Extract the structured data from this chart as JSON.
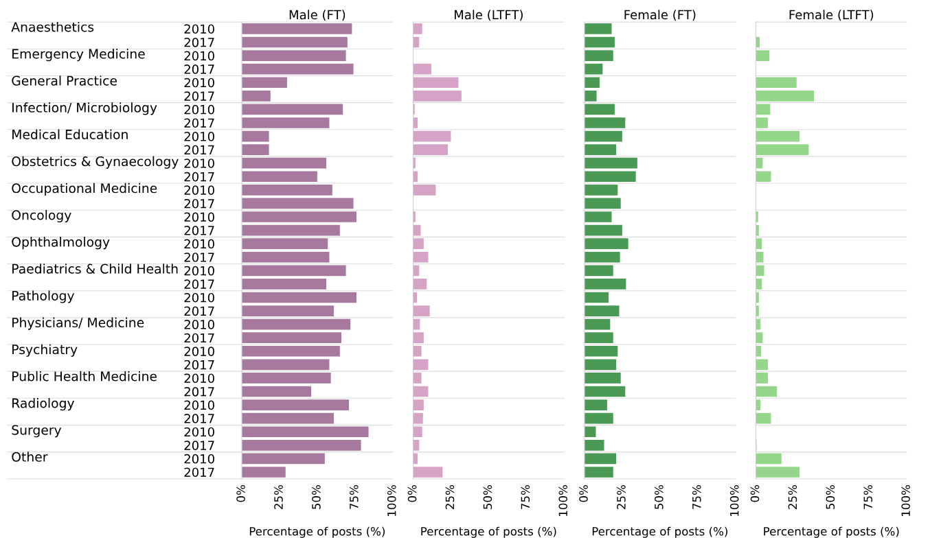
{
  "chart_data": [
    {
      "type": "bar",
      "orientation": "horizontal",
      "title": "Male (FT)",
      "xlabel": "Percentage of posts (%)",
      "categories": [
        "2010",
        "2017",
        "2010",
        "2017",
        "2010",
        "2017",
        "2010",
        "2017",
        "2010",
        "2017",
        "2010",
        "2017",
        "2010",
        "2017",
        "2010",
        "2017",
        "2010",
        "2017",
        "2010",
        "2017",
        "2010",
        "2017",
        "2010",
        "2017",
        "2010",
        "2017",
        "2010",
        "2017",
        "2010",
        "2017",
        "2010",
        "2017",
        "2010",
        "2017"
      ],
      "annotations": [
        "Anaesthetics",
        "Emergency Medicine",
        "General Practice",
        "Infection/ Microbiology",
        "Medical Education",
        "Obstetrics & Gynaecology",
        "Occupational Medicine",
        "Oncology",
        "Ophthalmology",
        "Paediatrics & Child Health",
        "Pathology",
        "Physicians/ Medicine",
        "Psychiatry",
        "Public Health Medicine",
        "Radiology",
        "Surgery",
        "Other"
      ],
      "values": [
        73,
        70,
        69,
        74,
        30,
        19,
        67,
        58,
        18,
        18,
        56,
        50,
        60,
        74,
        76,
        65,
        57,
        58,
        69,
        56,
        76,
        61,
        72,
        66,
        65,
        58,
        59,
        46,
        71,
        61,
        84,
        79,
        55,
        29
      ],
      "color": "#a8799f",
      "xlim": [
        0,
        100
      ],
      "xticks": [
        {
          "value": 0,
          "label": "0%"
        },
        {
          "value": 25,
          "label": "25%"
        },
        {
          "value": 50,
          "label": "50%"
        },
        {
          "value": 75,
          "label": "75%"
        },
        {
          "value": 100,
          "label": "100%"
        }
      ]
    },
    {
      "type": "bar",
      "orientation": "horizontal",
      "title": "Male (LTFT)",
      "xlabel": "Percentage of posts (%)",
      "tick_labels": "x",
      "categories": [
        "2010",
        "2017",
        "2010",
        "2017",
        "2010",
        "2017",
        "2010",
        "2017",
        "2010",
        "2017",
        "2010",
        "2017",
        "2010",
        "2017",
        "2010",
        "2017",
        "2010",
        "2017",
        "2010",
        "2017",
        "2010",
        "2017",
        "2010",
        "2017",
        "2010",
        "2017",
        "2010",
        "2017",
        "2010",
        "2017",
        "2010",
        "2017",
        "2010",
        "2017"
      ],
      "values": [
        6,
        4,
        0,
        12,
        30,
        32,
        1,
        3,
        25,
        23,
        1.5,
        3,
        15,
        0,
        1.5,
        5,
        7,
        10,
        4,
        9,
        2.5,
        11,
        4.5,
        7,
        5.5,
        10,
        5.5,
        10,
        7,
        6.5,
        6,
        4,
        3,
        19.5
      ],
      "color": "#d4a3c5",
      "xlim": [
        0,
        100
      ],
      "xticks": [
        {
          "value": 0,
          "label": "0%"
        },
        {
          "value": 25,
          "label": "25%"
        },
        {
          "value": 50,
          "label": "50%"
        },
        {
          "value": 75,
          "label": "75%"
        },
        {
          "value": 100,
          "label": "100%"
        }
      ]
    },
    {
      "type": "bar",
      "orientation": "horizontal",
      "title": "Female (FT)",
      "xlabel": "Percentage of posts (%)",
      "tick_labels": "x",
      "categories": [
        "2010",
        "2017",
        "2010",
        "2017",
        "2010",
        "2017",
        "2010",
        "2017",
        "2010",
        "2017",
        "2010",
        "2017",
        "2010",
        "2017",
        "2010",
        "2017",
        "2010",
        "2017",
        "2010",
        "2017",
        "2010",
        "2017",
        "2010",
        "2017",
        "2010",
        "2017",
        "2010",
        "2017",
        "2010",
        "2017",
        "2010",
        "2017",
        "2010",
        "2017"
      ],
      "values": [
        18,
        20,
        19,
        12,
        10,
        8,
        20,
        27,
        25,
        21,
        35,
        34,
        22,
        24,
        18,
        25,
        29,
        23.5,
        19,
        27.5,
        16,
        23,
        17,
        19,
        22,
        21,
        24,
        27,
        15,
        19,
        7.5,
        13,
        21,
        19
      ],
      "color": "#4a9a56",
      "xlim": [
        0,
        100
      ],
      "xticks": [
        {
          "value": 0,
          "label": "0%"
        },
        {
          "value": 25,
          "label": "25%"
        },
        {
          "value": 50,
          "label": "50%"
        },
        {
          "value": 75,
          "label": "75%"
        },
        {
          "value": 100,
          "label": "100%"
        }
      ]
    },
    {
      "type": "bar",
      "orientation": "horizontal",
      "title": "Female (LTFT)",
      "xlabel": "Percentage of posts (%)",
      "tick_labels": "x",
      "categories": [
        "2010",
        "2017",
        "2010",
        "2017",
        "2010",
        "2017",
        "2010",
        "2017",
        "2010",
        "2017",
        "2010",
        "2017",
        "2010",
        "2017",
        "2010",
        "2017",
        "2010",
        "2017",
        "2010",
        "2017",
        "2010",
        "2017",
        "2010",
        "2017",
        "2010",
        "2017",
        "2010",
        "2017",
        "2010",
        "2017",
        "2010",
        "2017",
        "2010",
        "2017"
      ],
      "values": [
        0,
        2.5,
        9,
        0,
        27,
        38.5,
        9.5,
        8,
        29,
        35,
        4.5,
        10,
        0,
        0,
        1.5,
        2,
        4,
        5,
        5.5,
        4,
        2,
        2,
        3,
        4.5,
        3.5,
        8,
        8,
        14,
        3,
        10,
        0,
        0.5,
        17,
        29
      ],
      "color": "#94d68a",
      "xlim": [
        0,
        100
      ],
      "xticks": [
        {
          "value": 0,
          "label": "0%"
        },
        {
          "value": 25,
          "label": "25%"
        },
        {
          "value": 50,
          "label": "50%"
        },
        {
          "value": 75,
          "label": "75%"
        },
        {
          "value": 100,
          "label": "100%"
        }
      ]
    }
  ]
}
